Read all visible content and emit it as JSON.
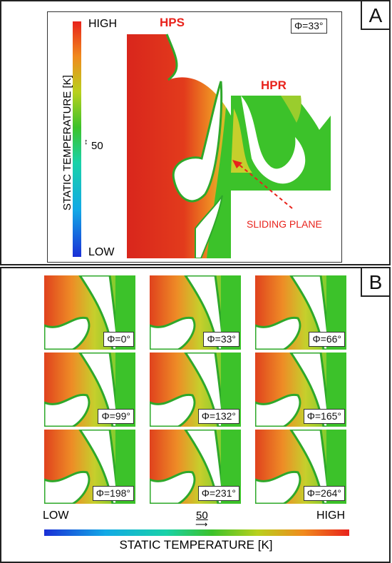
{
  "panel_a": {
    "letter": "A",
    "colorbar": {
      "high": "HIGH",
      "low": "LOW",
      "label": "STATIC TEMPERATURE [K]",
      "scale_value": "50"
    },
    "phi_label": "Φ=33°",
    "hps_label": "HPS",
    "hpr_label": "HPR",
    "sliding_plane_label": "SLIDING PLANE"
  },
  "panel_b": {
    "letter": "B",
    "cells": [
      {
        "phi": "Φ=0°"
      },
      {
        "phi": "Φ=33°"
      },
      {
        "phi": "Φ=66°"
      },
      {
        "phi": "Φ=99°"
      },
      {
        "phi": "Φ=132°"
      },
      {
        "phi": "Φ=165°"
      },
      {
        "phi": "Φ=198°"
      },
      {
        "phi": "Φ=231°"
      },
      {
        "phi": "Φ=264°"
      }
    ],
    "colorbar": {
      "low": "LOW",
      "high": "HIGH",
      "label": "STATIC TEMPERATURE [K]",
      "scale_value": "50"
    }
  },
  "colors": {
    "high": "#e8231c",
    "low": "#1a2fd6",
    "mid": "#2fc12f",
    "label_red": "#e8231c"
  }
}
